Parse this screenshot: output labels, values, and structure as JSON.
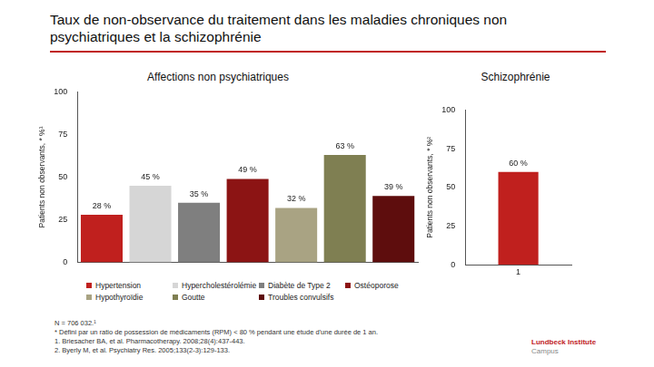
{
  "title": "Taux de non-observance du traitement dans les maladies chroniques non psychiatriques et la schizophrénie",
  "chart_data": [
    {
      "type": "bar",
      "title": "Affections non psychiatriques",
      "ylabel": "Patients non observants, * %¹",
      "categories": [
        "Hypertension",
        "Hypercholestérolémie",
        "Diabète de Type 2",
        "Ostéoporose",
        "Hypothyroïdie",
        "Goutte",
        "Troubles convulsifs"
      ],
      "values": [
        28,
        45,
        35,
        49,
        32,
        63,
        39
      ],
      "value_labels": [
        "28 %",
        "45 %",
        "35 %",
        "49 %",
        "32 %",
        "63 %",
        "39 %"
      ],
      "colors": [
        "#c0201e",
        "#d6d6d6",
        "#7f7f7f",
        "#8c1414",
        "#a9a383",
        "#7f7f52",
        "#5e0d0d"
      ],
      "ylim": [
        0,
        100
      ],
      "yticks": [
        0,
        25,
        50,
        75,
        100
      ],
      "grid": false,
      "data_labels": true,
      "tick_labels": "y",
      "legend": "bottom"
    },
    {
      "type": "bar",
      "title": "Schizophrénie",
      "ylabel": "Patients non observants, * %²",
      "categories": [
        "1"
      ],
      "values": [
        60
      ],
      "value_labels": [
        "60 %"
      ],
      "color": "#c0201e",
      "ylim": [
        0,
        100
      ],
      "yticks": [
        0,
        25,
        50,
        75,
        100
      ],
      "grid": false,
      "data_labels": true,
      "tick_labels": true
    }
  ],
  "footnotes": [
    "N = 706 032.¹",
    "* Défini par un ratio de possession de médicaments (RPM) < 80 % pendant une étude d'une durée de 1 an.",
    "1.  Briesacher BA, et al. Pharmacotherapy. 2008;28(4):437-443.",
    "2.  Byerly M, et al. Psychiatry Res. 2005;133(2-3):129-133."
  ],
  "logo": [
    "Lundbeck Institute",
    "Campus"
  ]
}
